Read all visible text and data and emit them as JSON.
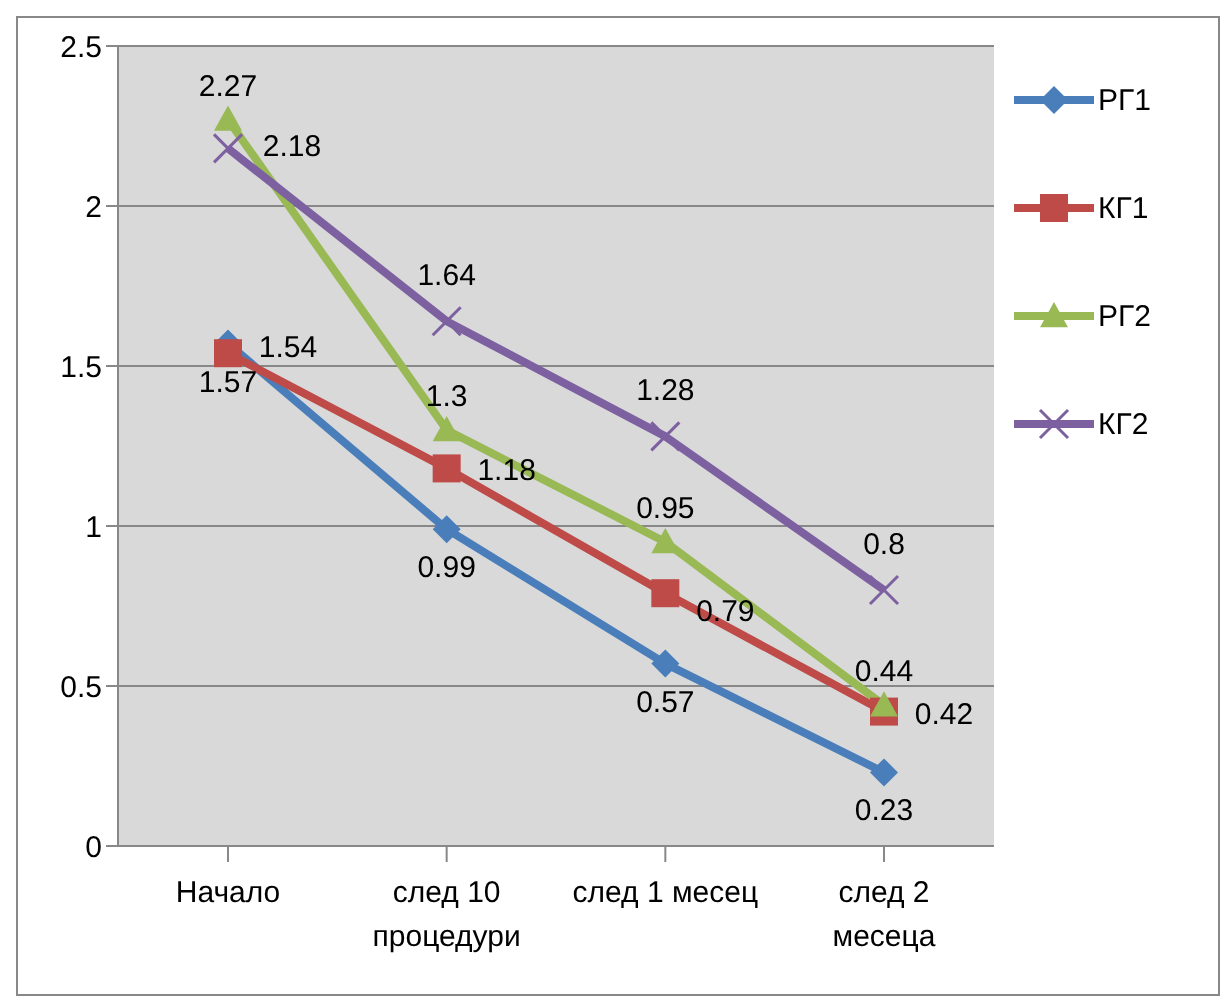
{
  "chart_data": {
    "type": "line",
    "categories": [
      "Начало",
      "след 10 процедури",
      "след 1 месец",
      "след 2 месеца"
    ],
    "series": [
      {
        "name": "РГ1",
        "color": "#4a7ebb",
        "marker": "diamond",
        "values": [
          1.57,
          0.99,
          0.57,
          0.23
        ]
      },
      {
        "name": "КГ1",
        "color": "#be4b48",
        "marker": "square",
        "values": [
          1.54,
          1.18,
          0.79,
          0.42
        ]
      },
      {
        "name": "РГ2",
        "color": "#98b954",
        "marker": "triangle",
        "values": [
          2.27,
          1.3,
          0.95,
          0.44
        ]
      },
      {
        "name": "КГ2",
        "color": "#7d60a0",
        "marker": "cross",
        "values": [
          2.18,
          1.64,
          1.28,
          0.8
        ]
      }
    ],
    "ylim": [
      0,
      2.5
    ],
    "yticks": [
      0,
      0.5,
      1,
      1.5,
      2,
      2.5
    ],
    "grid": "y",
    "legend": "right",
    "data_labels": true
  }
}
